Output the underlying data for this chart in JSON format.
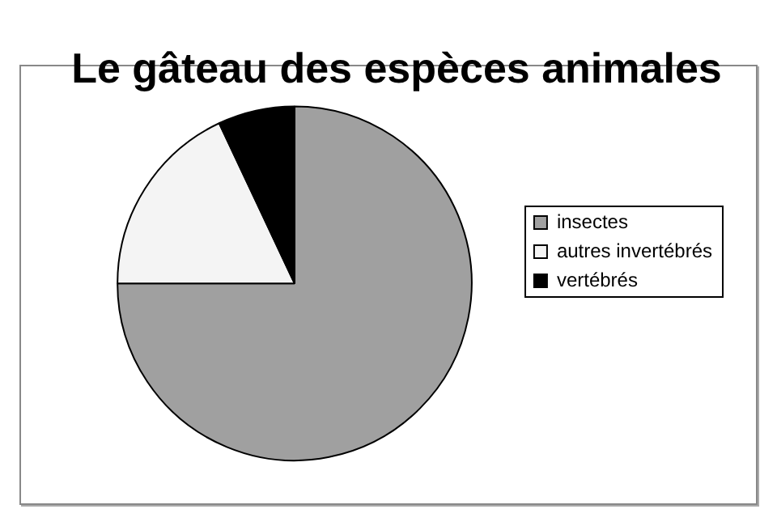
{
  "chart_data": {
    "type": "pie",
    "title": "Le gâteau des espèces animales",
    "categories": [
      "insectes",
      "autres invertébrés",
      "vertébrés"
    ],
    "values": [
      75,
      18,
      7
    ],
    "colors": [
      "#a0a0a0",
      "#f4f4f4",
      "#000000"
    ],
    "legend": "right"
  }
}
